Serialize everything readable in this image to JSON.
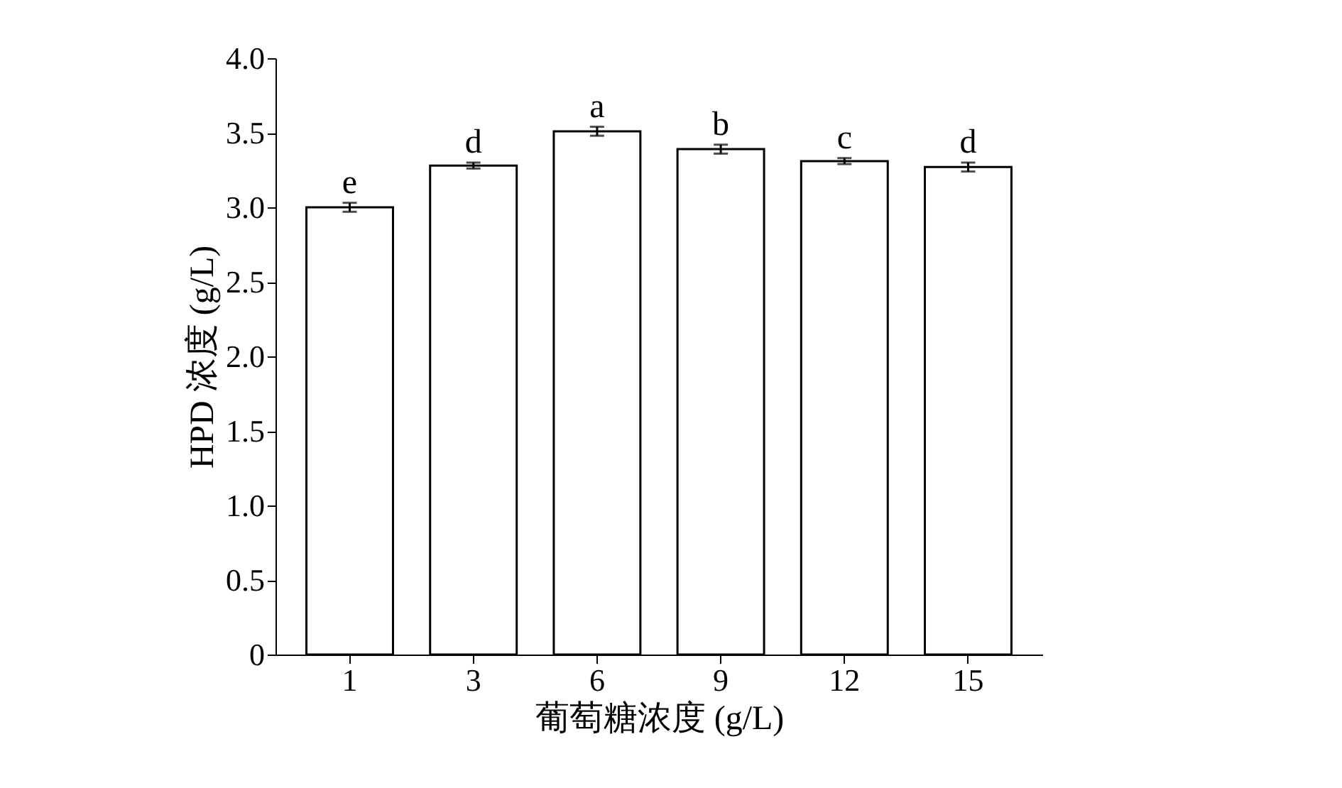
{
  "chart_data": {
    "type": "bar",
    "xlabel": "葡萄糖浓度 (g/L)",
    "ylabel": "HPD 浓度 (g/L)",
    "categories": [
      "1",
      "3",
      "6",
      "9",
      "12",
      "15"
    ],
    "series": [
      {
        "color": "#ffffff",
        "values": [
          3.0,
          3.28,
          3.51,
          3.39,
          3.31,
          3.27
        ],
        "errors": [
          0.03,
          0.02,
          0.03,
          0.03,
          0.02,
          0.03
        ]
      }
    ],
    "ylim": [
      0,
      4.0
    ],
    "yticks": [
      0,
      0.5,
      {
        "value": 1,
        "label": "1.0"
      },
      1.5,
      {
        "value": 2,
        "label": "2.0"
      },
      2.5,
      {
        "value": 3,
        "label": "3.0"
      },
      3.5,
      {
        "value": 4,
        "label": "4.0"
      }
    ],
    "grid": false,
    "annotations": [
      {
        "text": "e",
        "x": "1",
        "y": 3.03
      },
      {
        "text": "d",
        "x": "3",
        "y": 3.3
      },
      {
        "text": "a",
        "x": "6",
        "y": 3.54
      },
      {
        "text": "b",
        "x": "9",
        "y": 3.42
      },
      {
        "text": "c",
        "x": "12",
        "y": 3.33
      },
      {
        "text": "d",
        "x": "15",
        "y": 3.3
      }
    ]
  }
}
